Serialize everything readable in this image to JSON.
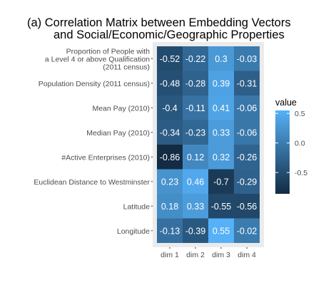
{
  "chart_data": {
    "type": "heatmap",
    "title_lines": [
      "(a) Correlation Matrix between Embedding Vectors",
      "and Social/Economic/Geographic Properties"
    ],
    "rows": [
      [
        "Proportion of People with",
        "a Level 4 or above Qualification",
        "(2011 census)"
      ],
      [
        "Population Density (2011 census)"
      ],
      [
        "Mean Pay (2010)"
      ],
      [
        "Median Pay (2010)"
      ],
      [
        "#Active Enterprises (2010)"
      ],
      [
        "Euclidean Distance to Westminster"
      ],
      [
        "Latitude"
      ],
      [
        "Longitude"
      ]
    ],
    "columns": [
      "dim 1",
      "dim 2",
      "dim 3",
      "dim 4"
    ],
    "values": [
      [
        -0.52,
        -0.22,
        0.3,
        -0.03
      ],
      [
        -0.48,
        -0.28,
        0.39,
        -0.31
      ],
      [
        -0.4,
        -0.11,
        0.41,
        -0.06
      ],
      [
        -0.34,
        -0.23,
        0.33,
        -0.06
      ],
      [
        -0.86,
        0.12,
        0.32,
        -0.26
      ],
      [
        0.23,
        0.46,
        -0.7,
        -0.29
      ],
      [
        0.18,
        0.33,
        -0.55,
        -0.56
      ],
      [
        -0.13,
        -0.39,
        0.55,
        -0.02
      ]
    ],
    "value_labels": [
      [
        "-0.52",
        "-0.22",
        "0.3",
        "-0.03"
      ],
      [
        "-0.48",
        "-0.28",
        "0.39",
        "-0.31"
      ],
      [
        "-0.4",
        "-0.11",
        "0.41",
        "-0.06"
      ],
      [
        "-0.34",
        "-0.23",
        "0.33",
        "-0.06"
      ],
      [
        "-0.86",
        "0.12",
        "0.32",
        "-0.26"
      ],
      [
        "0.23",
        "0.46",
        "-0.7",
        "-0.29"
      ],
      [
        "0.18",
        "0.33",
        "-0.55",
        "-0.56"
      ],
      [
        "-0.13",
        "-0.39",
        "0.55",
        "-0.02"
      ]
    ],
    "legend": {
      "title": "value",
      "position": "right",
      "ticks": [
        {
          "value": 0.5,
          "label": "0.5"
        },
        {
          "value": 0.0,
          "label": "0.0"
        },
        {
          "value": -0.5,
          "label": "-0.5"
        }
      ],
      "range": [
        -0.86,
        0.55
      ]
    },
    "color_low": "#132b43",
    "color_high": "#56b1f7",
    "panel_background": "#ebebeb",
    "grid": false
  }
}
